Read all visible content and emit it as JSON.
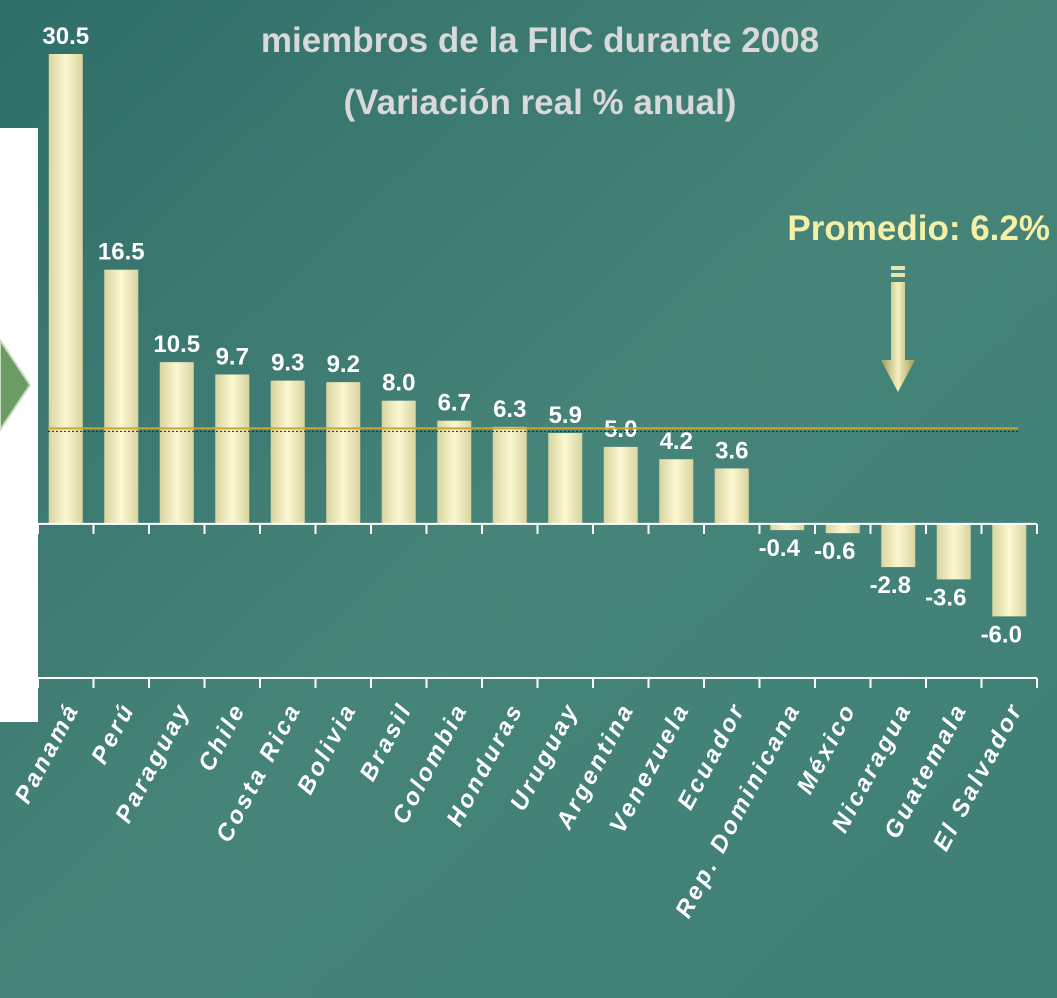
{
  "chart_data": {
    "type": "bar",
    "title_lines": [
      "miembros de la FIIC durante 2008",
      "(Variación real % anual)"
    ],
    "annotation": "Promedio: 6.2%",
    "average": 6.2,
    "categories": [
      "Panamá",
      "Perú",
      "Paraguay",
      "Chile",
      "Costa Rica",
      "Bolivia",
      "Brasil",
      "Colombia",
      "Honduras",
      "Uruguay",
      "Argentina",
      "Venezuela",
      "Ecuador",
      "Rep. Dominicana",
      "México",
      "Nicaragua",
      "Guatemala",
      "El Salvador"
    ],
    "values": [
      30.5,
      16.5,
      10.5,
      9.7,
      9.3,
      9.2,
      8.0,
      6.7,
      6.3,
      5.9,
      5.0,
      4.2,
      3.6,
      -0.4,
      -0.6,
      -2.8,
      -3.6,
      -6.0
    ],
    "value_labels": [
      "30.5",
      "16.5",
      "10.5",
      "9.7",
      "9.3",
      "9.2",
      "8.0",
      "6.7",
      "6.3",
      "5.9",
      "5.0",
      "4.2",
      "3.6",
      "-0.4",
      "-0.6",
      "-2.8",
      "-3.6",
      "-6.0"
    ],
    "color": "#ece8b8",
    "ylim": [
      -10,
      30.5
    ]
  }
}
